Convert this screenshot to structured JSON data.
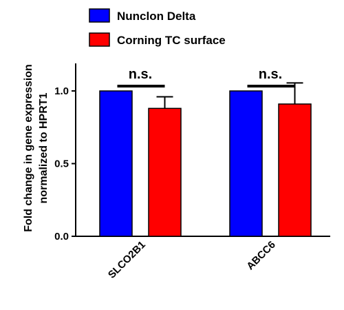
{
  "chart_data": {
    "type": "bar",
    "categories": [
      "SLCO2B1",
      "ABCC6"
    ],
    "series": [
      {
        "name": "Nunclon Delta",
        "color": "#0000FF",
        "values": [
          1.0,
          1.0
        ],
        "errors": [
          0,
          0
        ]
      },
      {
        "name": "Corning TC surface",
        "color": "#FF0000",
        "values": [
          0.88,
          0.91
        ],
        "errors": [
          0.08,
          0.145
        ]
      }
    ],
    "ylabel_line1": "Fold change in gene expression",
    "ylabel_line2": "normalized to HPRT1",
    "xlabel": "",
    "ylim": [
      0.0,
      1.2
    ],
    "yticks": [
      0.0,
      0.5,
      1.0
    ],
    "ytick_labels": [
      "0.0",
      "0.5",
      "1.0"
    ],
    "annotations": [
      "n.s.",
      "n.s."
    ],
    "legend_position": "top",
    "grid": false
  }
}
